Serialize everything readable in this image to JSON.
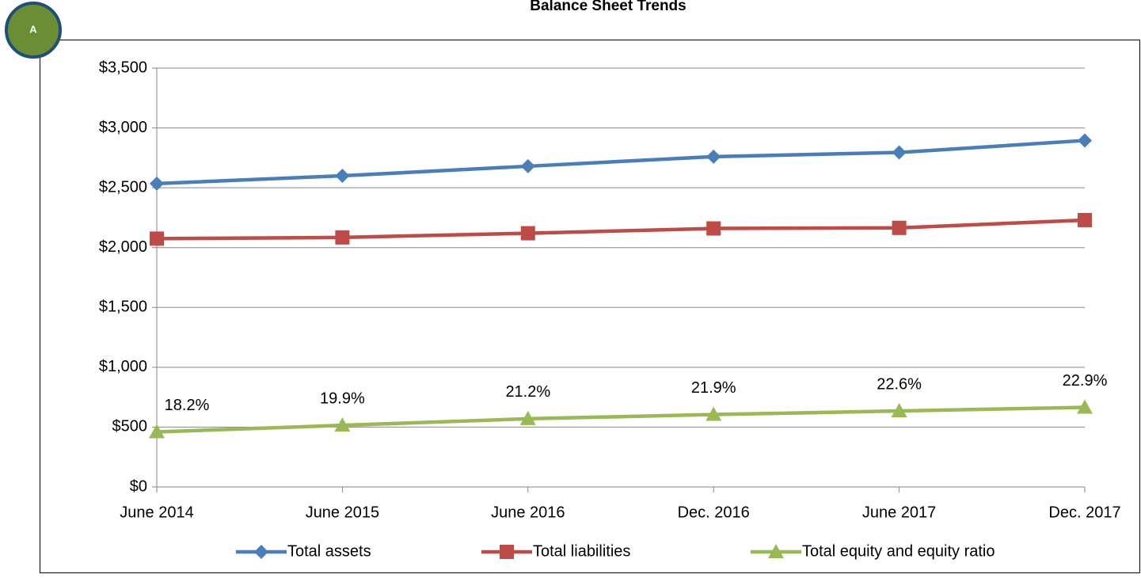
{
  "chart_data": {
    "type": "line",
    "title": "Balance Sheet Trends",
    "badge": "A",
    "categories": [
      "June 2014",
      "June 2015",
      "June 2016",
      "Dec. 2016",
      "June 2017",
      "Dec. 2017"
    ],
    "series": [
      {
        "name": "Total assets",
        "color": "#4a7ebb",
        "marker": "diamond",
        "values": [
          2535,
          2600,
          2680,
          2760,
          2795,
          2895
        ]
      },
      {
        "name": "Total liabilities",
        "color": "#be4b48",
        "marker": "square",
        "values": [
          2075,
          2085,
          2120,
          2160,
          2165,
          2230
        ]
      },
      {
        "name": "Total equity and equity ratio",
        "color": "#98b954",
        "marker": "triangle",
        "values": [
          460,
          515,
          570,
          605,
          635,
          665
        ],
        "point_labels": [
          "18.2%",
          "19.9%",
          "21.2%",
          "21.9%",
          "22.6%",
          "22.9%"
        ]
      }
    ],
    "ylim": [
      0,
      3500
    ],
    "yticks": [
      {
        "value": 0,
        "label": "$0"
      },
      {
        "value": 500,
        "label": "$500"
      },
      {
        "value": 1000,
        "label": "$1,000"
      },
      {
        "value": 1500,
        "label": "$1,500"
      },
      {
        "value": 2000,
        "label": "$2,000"
      },
      {
        "value": 2500,
        "label": "$2,500"
      },
      {
        "value": 3000,
        "label": "$3,000"
      },
      {
        "value": 3500,
        "label": "$3,500"
      }
    ],
    "grid": true
  }
}
